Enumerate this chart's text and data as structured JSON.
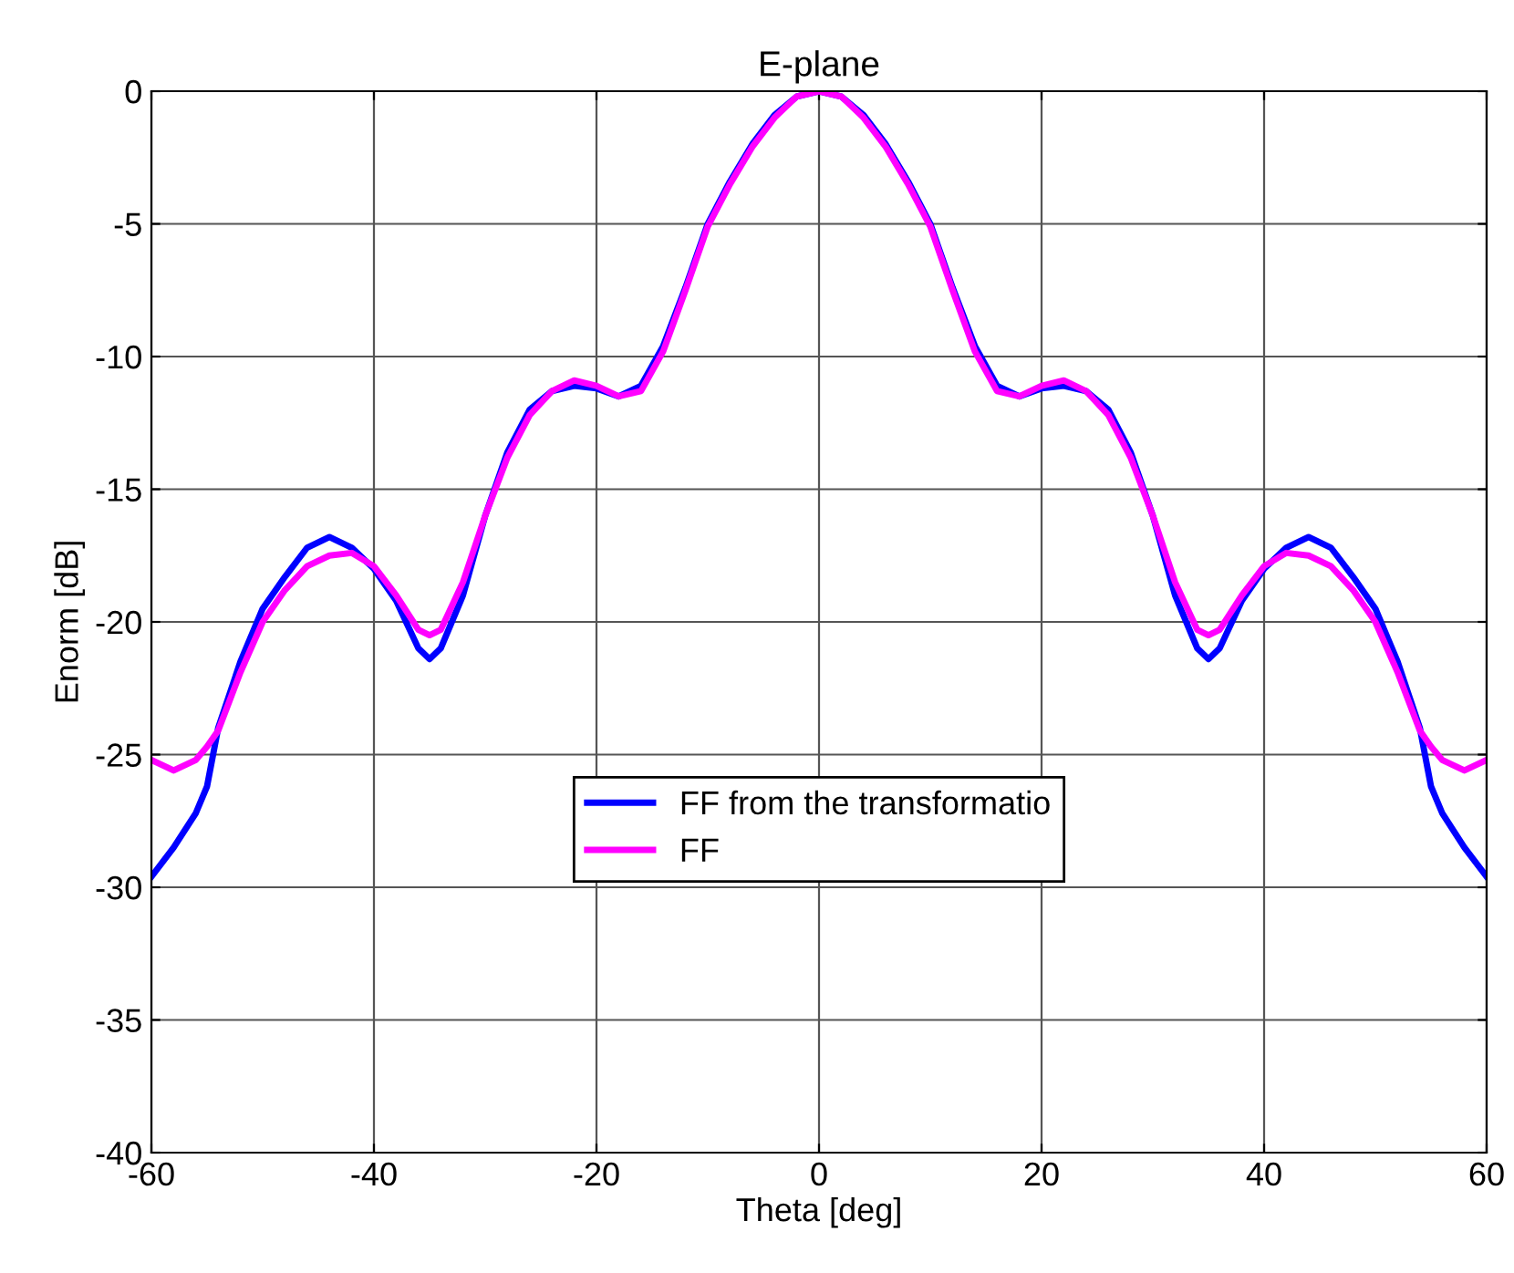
{
  "chart_data": {
    "type": "line",
    "title": "E-plane",
    "xlabel": "Theta [deg]",
    "ylabel": "Enorm [dB]",
    "x": [
      -60,
      -58,
      -56,
      -55,
      -54,
      -52,
      -50,
      -48,
      -46,
      -44,
      -42,
      -40,
      -38,
      -36,
      -35,
      -34,
      -32,
      -30,
      -28,
      -26,
      -24,
      -22,
      -20,
      -18,
      -16,
      -14,
      -12,
      -10,
      -8,
      -6,
      -4,
      -2,
      0,
      2,
      4,
      6,
      8,
      10,
      12,
      14,
      16,
      18,
      20,
      22,
      24,
      26,
      28,
      30,
      32,
      34,
      35,
      36,
      38,
      40,
      42,
      44,
      46,
      48,
      50,
      52,
      54,
      55,
      56,
      58,
      60
    ],
    "series": [
      {
        "name": "FF from the transformatio",
        "color": "#0000ff",
        "values": [
          -29.6,
          -28.5,
          -27.2,
          -26.2,
          -24,
          -21.5,
          -19.5,
          -18.3,
          -17.2,
          -16.8,
          -17.2,
          -18,
          -19.2,
          -21.0,
          -21.4,
          -21.0,
          -19,
          -16,
          -13.6,
          -12,
          -11.3,
          -11.1,
          -11.2,
          -11.5,
          -11.1,
          -9.6,
          -7.4,
          -5,
          -3.4,
          -2.0,
          -0.9,
          -0.2,
          0,
          -0.2,
          -0.9,
          -2.0,
          -3.4,
          -5,
          -7.4,
          -9.6,
          -11.1,
          -11.5,
          -11.2,
          -11.1,
          -11.3,
          -12,
          -13.6,
          -16,
          -19,
          -21.0,
          -21.4,
          -21.0,
          -19.2,
          -18,
          -17.2,
          -16.8,
          -17.2,
          -18.3,
          -19.5,
          -21.5,
          -24,
          -26.2,
          -27.2,
          -28.5,
          -29.6
        ]
      },
      {
        "name": "FF",
        "color": "#ff00ff",
        "values": [
          -25.2,
          -25.6,
          -25.2,
          -24.7,
          -24.1,
          -21.9,
          -20,
          -18.8,
          -17.9,
          -17.5,
          -17.4,
          -17.9,
          -19,
          -20.3,
          -20.5,
          -20.3,
          -18.5,
          -16,
          -13.8,
          -12.2,
          -11.3,
          -10.9,
          -11.1,
          -11.5,
          -11.3,
          -9.8,
          -7.5,
          -5.1,
          -3.5,
          -2.1,
          -1.0,
          -0.2,
          0,
          -0.2,
          -1.0,
          -2.1,
          -3.5,
          -5.1,
          -7.5,
          -9.8,
          -11.3,
          -11.5,
          -11.1,
          -10.9,
          -11.3,
          -12.2,
          -13.8,
          -16,
          -18.5,
          -20.3,
          -20.5,
          -20.3,
          -19,
          -17.9,
          -17.4,
          -17.5,
          -17.9,
          -18.8,
          -20,
          -21.9,
          -24.1,
          -24.7,
          -25.2,
          -25.6,
          -25.2
        ]
      }
    ],
    "xlim": [
      -60,
      60
    ],
    "xticks": [
      -60,
      -40,
      -20,
      0,
      20,
      40,
      60
    ],
    "ylim": [
      -40,
      0
    ],
    "yticks": [
      -40,
      -35,
      -30,
      -25,
      -20,
      -15,
      -10,
      -5,
      0
    ],
    "grid": true,
    "legend": "bottom"
  }
}
